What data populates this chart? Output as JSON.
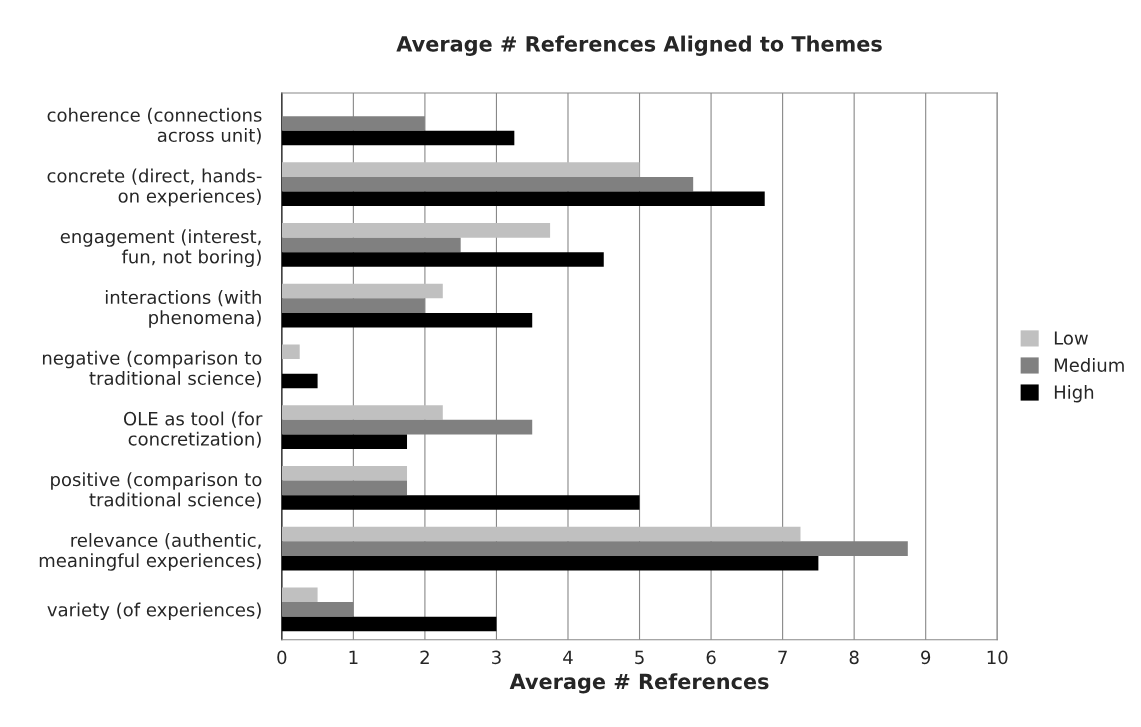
{
  "chart_data": {
    "type": "bar",
    "orientation": "horizontal",
    "title": "Average # References Aligned to Themes",
    "xlabel": "Average # References",
    "categories": [
      "coherence (connections\nacross unit)",
      "concrete (direct, hands-\non experiences)",
      "engagement (interest,\nfun, not boring)",
      "interactions (with\nphenomena)",
      "negative (comparison to\ntraditional science)",
      "OLE as tool (for\nconcretization)",
      "positive (comparison to\ntraditional science)",
      "relevance (authentic,\nmeaningful experiences)",
      "variety (of experiences)"
    ],
    "series": [
      {
        "name": "Low",
        "color": "#c0c0c0",
        "values": [
          null,
          5,
          3.75,
          2.25,
          0.25,
          2.25,
          1.75,
          7.25,
          0.5
        ]
      },
      {
        "name": "Medium",
        "color": "#808080",
        "values": [
          2,
          5.75,
          2.5,
          2,
          null,
          3.5,
          1.75,
          8.75,
          1
        ]
      },
      {
        "name": "High",
        "color": "#000000",
        "values": [
          3.25,
          6.75,
          4.5,
          3.5,
          0.5,
          1.75,
          5,
          7.5,
          3
        ]
      }
    ],
    "xlim": [
      0,
      10
    ],
    "xticks": [
      0,
      1,
      2,
      3,
      4,
      5,
      6,
      7,
      8,
      9,
      10
    ],
    "grid": "x",
    "legend": "right"
  }
}
